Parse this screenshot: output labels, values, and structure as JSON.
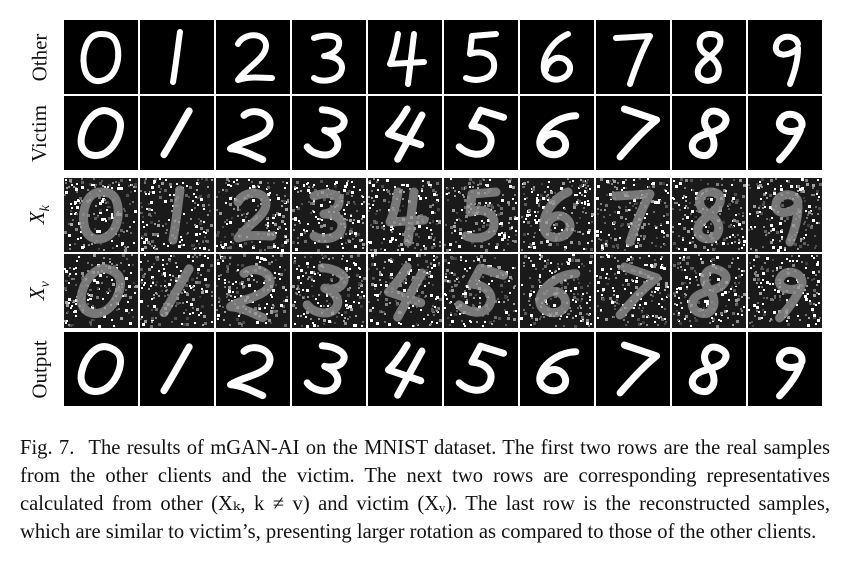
{
  "rows": [
    {
      "label": "Other",
      "style": "clean-upright"
    },
    {
      "label": "Victim",
      "style": "clean-slanted"
    },
    {
      "label": "X",
      "sub": "k",
      "style": "noisy"
    },
    {
      "label": "X",
      "sub": "v",
      "style": "noisy"
    },
    {
      "label": "Output",
      "style": "clean-slanted"
    }
  ],
  "digits": [
    "0",
    "1",
    "2",
    "3",
    "4",
    "5",
    "6",
    "7",
    "8",
    "9"
  ],
  "caption": {
    "fig_label": "Fig. 7.",
    "text": "The results of mGAN-AI on the MNIST dataset. The first two rows are the real samples from the other clients and the victim. The next two rows are corresponding representatives calculated from other (Xₖ, k ≠ v) and victim (Xᵥ). The last row is the reconstructed samples, which are similar to victim’s, presenting larger rotation as compared to those of the other clients."
  },
  "colors": {
    "background": "#ffffff",
    "tile": "#000000",
    "stroke": "#ffffff"
  }
}
